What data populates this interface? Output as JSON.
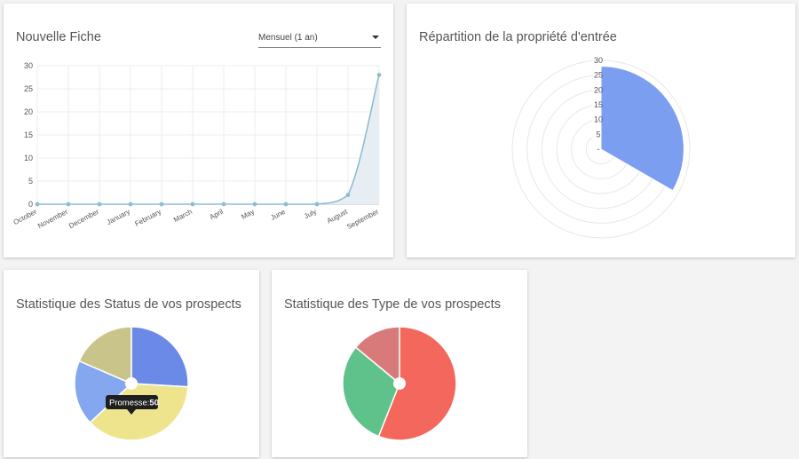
{
  "line_card": {
    "title": "Nouvelle Fiche",
    "period_select": {
      "value": "Mensuel (1 an)"
    }
  },
  "polar_card": {
    "title": "Répartition de la propriété d'entrée"
  },
  "status_card": {
    "title": "Statistique des Status de vos prospects",
    "tooltip": {
      "label": "Promesse:",
      "value": "50"
    }
  },
  "type_card": {
    "title": "Statistique des Type de vos prospects"
  },
  "colors": {
    "line": "#8fbcd1",
    "line_fill": "#e6eef4",
    "polar": "#7b9ef0",
    "status": [
      "#6b8ae8",
      "#efe48e",
      "#84a7ef",
      "#c9c48a"
    ],
    "type": [
      "#f4675c",
      "#5fc28a",
      "#d97a7a"
    ]
  },
  "chart_data": [
    {
      "type": "line",
      "categories": [
        "October",
        "November",
        "December",
        "January",
        "February",
        "March",
        "April",
        "May",
        "June",
        "July",
        "August",
        "September"
      ],
      "values": [
        0,
        0,
        0,
        0,
        0,
        0,
        0,
        0,
        0,
        0,
        2,
        28
      ],
      "yticks": [
        "0",
        "5",
        "10",
        "15",
        "20",
        "25",
        "30"
      ],
      "ylim": [
        0,
        30
      ],
      "grid": true,
      "area_fill": true
    },
    {
      "type": "polar_area",
      "values": [
        28
      ],
      "rticks": [
        "-",
        "5",
        "10",
        "15",
        "20",
        "25",
        "30"
      ],
      "rlim": [
        0,
        30
      ]
    },
    {
      "type": "pie",
      "variant": "doughnut",
      "values": [
        35,
        50,
        25,
        25
      ],
      "tooltip_index": 1
    },
    {
      "type": "pie",
      "variant": "doughnut",
      "values": [
        56,
        30,
        14
      ]
    }
  ]
}
